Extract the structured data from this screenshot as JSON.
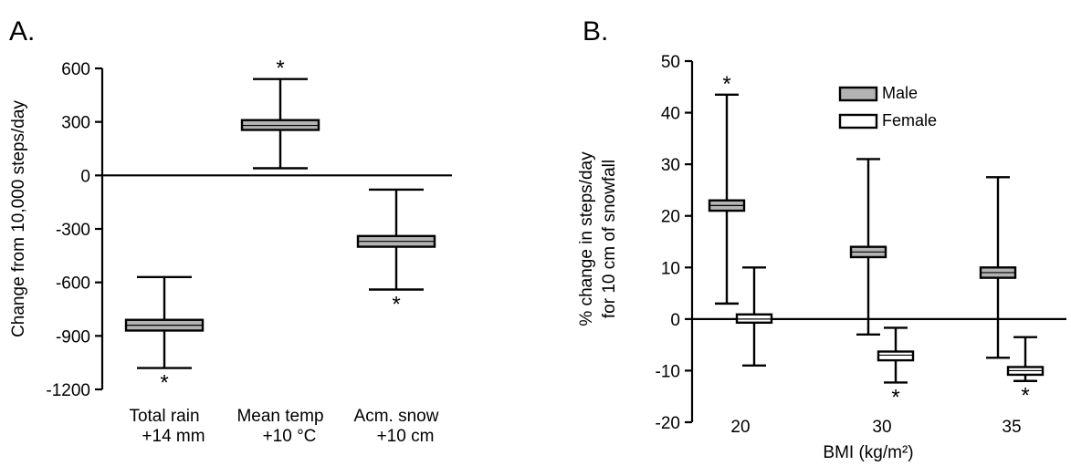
{
  "chart_data": [
    {
      "type": "box",
      "panel_label": "A.",
      "ylabel": "Change from 10,000 steps/day",
      "ylim": [
        -1200,
        600
      ],
      "yticks": [
        "600",
        "300",
        "0",
        "-300",
        "-600",
        "-900",
        "-1200"
      ],
      "yticks_values": [
        600,
        300,
        0,
        -300,
        -600,
        -900,
        -1200
      ],
      "categories": [
        {
          "line1": "Total rain",
          "line2": "+14 mm"
        },
        {
          "line1": "Mean temp",
          "line2": "+10 °C"
        },
        {
          "line1": "Acm. snow",
          "line2": "+10 cm"
        }
      ],
      "series": [
        {
          "color": "#b3b3b3",
          "boxes": [
            {
              "center": -840,
              "box_low": -870,
              "box_high": -810,
              "low": -1080,
              "high": -570,
              "marker": "*",
              "marker_pos": "below"
            },
            {
              "center": 280,
              "box_low": 255,
              "box_high": 310,
              "low": 40,
              "high": 540,
              "marker": "*",
              "marker_pos": "above"
            },
            {
              "center": -370,
              "box_low": -400,
              "box_high": -340,
              "low": -640,
              "high": -80,
              "marker": "*",
              "marker_pos": "below"
            }
          ]
        }
      ],
      "zero_line": 0
    },
    {
      "type": "box",
      "panel_label": "B.",
      "ylabel_line1": "% change in steps/day",
      "ylabel_line2": "for 10 cm of snowfall",
      "xlabel": "BMI (kg/m²)",
      "ylim": [
        -20,
        50
      ],
      "yticks": [
        "50",
        "40",
        "30",
        "20",
        "10",
        "0",
        "-10",
        "-20"
      ],
      "yticks_values": [
        50,
        40,
        30,
        20,
        10,
        0,
        -10,
        -20
      ],
      "categories": [
        "20",
        "30",
        "35"
      ],
      "legend": {
        "position": "top-center",
        "entries": [
          "Male",
          "Female"
        ]
      },
      "series": [
        {
          "name": "Male",
          "color": "#b3b3b3",
          "boxes": [
            {
              "center": 22,
              "box_low": 21,
              "box_high": 23,
              "low": 3,
              "high": 43.5,
              "marker": "*",
              "marker_pos": "above"
            },
            {
              "center": 13,
              "box_low": 12,
              "box_high": 14,
              "low": -3,
              "high": 31,
              "marker": "",
              "marker_pos": ""
            },
            {
              "center": 9,
              "box_low": 8,
              "box_high": 10,
              "low": -7.5,
              "high": 27.5,
              "marker": "",
              "marker_pos": ""
            }
          ]
        },
        {
          "name": "Female",
          "color": "#ffffff",
          "boxes": [
            {
              "center": 0,
              "box_low": -0.7,
              "box_high": 0.9,
              "low": -9,
              "high": 10,
              "marker": "",
              "marker_pos": ""
            },
            {
              "center": -7,
              "box_low": -8,
              "box_high": -6.3,
              "low": -12.3,
              "high": -1.7,
              "marker": "*",
              "marker_pos": "below"
            },
            {
              "center": -10,
              "box_low": -10.8,
              "box_high": -9.3,
              "low": -12,
              "high": -3.5,
              "marker": "*",
              "marker_pos": "below"
            }
          ]
        }
      ],
      "zero_line": 0
    }
  ]
}
